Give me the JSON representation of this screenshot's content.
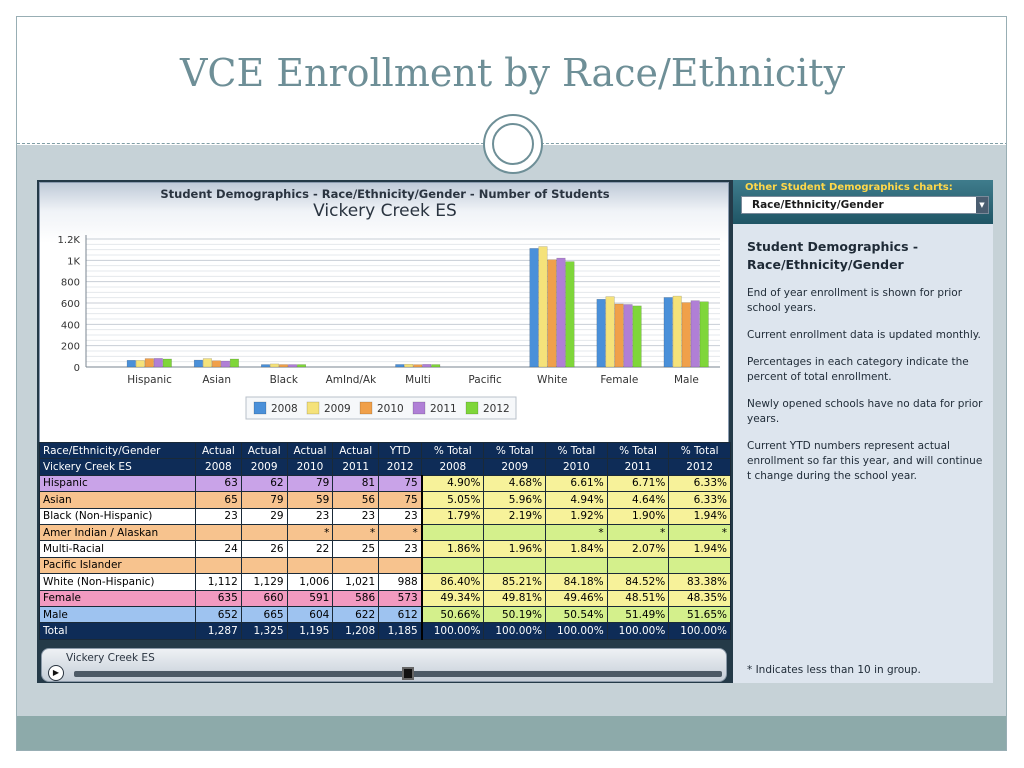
{
  "slide": {
    "title": "VCE Enrollment by Race/Ethnicity"
  },
  "chart": {
    "heading": "Student Demographics - Race/Ethnicity/Gender - Number of Students",
    "school": "Vickery Creek ES"
  },
  "chart_data": {
    "type": "bar",
    "title": "Student Demographics - Race/Ethnicity/Gender - Number of Students",
    "subtitle": "Vickery Creek ES",
    "categories": [
      "Hispanic",
      "Asian",
      "Black",
      "AmInd/Ak",
      "Multi",
      "Pacific",
      "White",
      "Female",
      "Male"
    ],
    "series": [
      {
        "name": "2008",
        "color": "#4a90d9",
        "values": [
          63,
          65,
          23,
          0,
          24,
          0,
          1112,
          635,
          652
        ]
      },
      {
        "name": "2009",
        "color": "#f5e27a",
        "values": [
          62,
          79,
          29,
          0,
          26,
          0,
          1129,
          660,
          665
        ]
      },
      {
        "name": "2010",
        "color": "#f0a04a",
        "values": [
          79,
          59,
          23,
          0,
          22,
          0,
          1006,
          591,
          604
        ]
      },
      {
        "name": "2011",
        "color": "#b07fd6",
        "values": [
          81,
          56,
          23,
          0,
          25,
          0,
          1021,
          586,
          622
        ]
      },
      {
        "name": "2012",
        "color": "#7fd63a",
        "values": [
          75,
          75,
          23,
          0,
          23,
          0,
          988,
          573,
          612
        ]
      }
    ],
    "yticks": [
      "0",
      "200",
      "400",
      "600",
      "800",
      "1K",
      "1.2K"
    ],
    "ylim": [
      0,
      1200
    ],
    "grid": true,
    "legend": "bottom"
  },
  "table": {
    "headers": [
      [
        "Race/Ethnicity/Gender",
        "Vickery Creek ES"
      ],
      [
        "Actual",
        "2008"
      ],
      [
        "Actual",
        "2009"
      ],
      [
        "Actual",
        "2010"
      ],
      [
        "Actual",
        "2011"
      ],
      [
        "YTD",
        "2012"
      ],
      [
        "% Total",
        "2008"
      ],
      [
        "% Total",
        "2009"
      ],
      [
        "% Total",
        "2010"
      ],
      [
        "% Total",
        "2011"
      ],
      [
        "% Total",
        "2012"
      ]
    ],
    "rows": [
      {
        "label": "Hispanic",
        "color": "#c9a3e8",
        "pctcolor": "#f7f29a",
        "values": [
          "63",
          "62",
          "79",
          "81",
          "75",
          "4.90%",
          "4.68%",
          "6.61%",
          "6.71%",
          "6.33%"
        ]
      },
      {
        "label": "Asian",
        "color": "#f7c38e",
        "pctcolor": "#f7f29a",
        "values": [
          "65",
          "79",
          "59",
          "56",
          "75",
          "5.05%",
          "5.96%",
          "4.94%",
          "4.64%",
          "6.33%"
        ]
      },
      {
        "label": "Black (Non-Hispanic)",
        "color": "#ffffff",
        "pctcolor": "#f7f29a",
        "values": [
          "23",
          "29",
          "23",
          "23",
          "23",
          "1.79%",
          "2.19%",
          "1.92%",
          "1.90%",
          "1.94%"
        ]
      },
      {
        "label": "Amer Indian / Alaskan",
        "color": "#f7c38e",
        "pctcolor": "#d4f08c",
        "values": [
          "",
          "",
          "*",
          "*",
          "*",
          "",
          "",
          "*",
          "*",
          "*"
        ]
      },
      {
        "label": "Multi-Racial",
        "color": "#ffffff",
        "pctcolor": "#f7f29a",
        "values": [
          "24",
          "26",
          "22",
          "25",
          "23",
          "1.86%",
          "1.96%",
          "1.84%",
          "2.07%",
          "1.94%"
        ]
      },
      {
        "label": "Pacific Islander",
        "color": "#f7c38e",
        "pctcolor": "#d4f08c",
        "values": [
          "",
          "",
          "",
          "",
          "",
          "",
          "",
          "",
          "",
          ""
        ]
      },
      {
        "label": "White (Non-Hispanic)",
        "color": "#ffffff",
        "pctcolor": "#f7f29a",
        "values": [
          "1,112",
          "1,129",
          "1,006",
          "1,021",
          "988",
          "86.40%",
          "85.21%",
          "84.18%",
          "84.52%",
          "83.38%"
        ]
      },
      {
        "label": "Female",
        "color": "#f29ac0",
        "pctcolor": "#f7f29a",
        "values": [
          "635",
          "660",
          "591",
          "586",
          "573",
          "49.34%",
          "49.81%",
          "49.46%",
          "48.51%",
          "48.35%"
        ]
      },
      {
        "label": "Male",
        "color": "#9ec3f0",
        "pctcolor": "#d4f08c",
        "values": [
          "652",
          "665",
          "604",
          "622",
          "612",
          "50.66%",
          "50.19%",
          "50.54%",
          "51.49%",
          "51.65%"
        ]
      },
      {
        "label": "Total",
        "color": "#0e2c57",
        "pctcolor": "#0e2c57",
        "total": true,
        "values": [
          "1,287",
          "1,325",
          "1,195",
          "1,208",
          "1,185",
          "100.00%",
          "100.00%",
          "100.00%",
          "100.00%",
          "100.00%"
        ]
      }
    ]
  },
  "player": {
    "label": "Vickery Creek ES",
    "play_icon": "play-icon"
  },
  "side_panel": {
    "header_label": "Other Student Demographics charts:",
    "selected_chart": "Race/Ethnicity/Gender",
    "title": "Student Demographics - Race/Ethnicity/Gender",
    "paragraphs": [
      "End of year enrollment is shown for prior school years.",
      "Current enrollment data is updated monthly.",
      "Percentages in each category indicate the percent of total enrollment.",
      "Newly opened schools have no data for prior years.",
      "Current YTD numbers represent actual enrollment so far this year, and will continue t change during the school year."
    ],
    "footnote": "* Indicates less than 10 in group."
  }
}
